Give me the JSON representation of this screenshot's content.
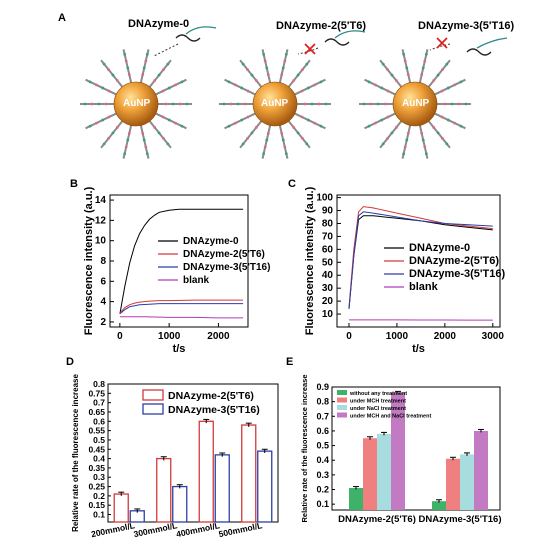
{
  "panel_a": {
    "label": "A",
    "titles": [
      "DNAzyme-0",
      "DNAzyme-2(5'T6)",
      "DNAzyme-3(5'T16)"
    ],
    "particle_label": "AuNP"
  },
  "chart_data": [
    {
      "panel": "B",
      "type": "line",
      "title": "",
      "xlabel": "t/s",
      "ylabel": "Fluorescence intensity (a.u.)",
      "xlim": [
        -200,
        2600
      ],
      "ylim": [
        1.5,
        14.5
      ],
      "xticks": [
        0,
        1000,
        2000
      ],
      "yticks": [
        2,
        4,
        6,
        8,
        10,
        12,
        14
      ],
      "legend_position": "center-right",
      "series": [
        {
          "name": "DNAzyme-0",
          "color": "#000000",
          "x": [
            0,
            100,
            200,
            300,
            400,
            500,
            600,
            700,
            800,
            1000,
            1200,
            1500,
            2000,
            2500
          ],
          "y": [
            2.8,
            5.5,
            7.8,
            9.5,
            10.7,
            11.5,
            12.1,
            12.5,
            12.8,
            13.0,
            13.1,
            13.1,
            13.1,
            13.1
          ]
        },
        {
          "name": "DNAzyme-2(5'T6)",
          "color": "#d23a3a",
          "x": [
            0,
            100,
            200,
            300,
            400,
            600,
            800,
            1000,
            1500,
            2000,
            2500
          ],
          "y": [
            2.9,
            3.4,
            3.7,
            3.85,
            3.95,
            4.05,
            4.1,
            4.1,
            4.15,
            4.15,
            4.15
          ]
        },
        {
          "name": "DNAzyme-3(5'T16)",
          "color": "#2c3fa8",
          "x": [
            0,
            100,
            200,
            300,
            400,
            600,
            800,
            1000,
            1500,
            2000,
            2500
          ],
          "y": [
            2.8,
            3.2,
            3.5,
            3.6,
            3.7,
            3.75,
            3.8,
            3.8,
            3.8,
            3.8,
            3.8
          ]
        },
        {
          "name": "blank",
          "color": "#b43cb4",
          "x": [
            0,
            500,
            1000,
            1500,
            2000,
            2500
          ],
          "y": [
            2.5,
            2.5,
            2.45,
            2.45,
            2.4,
            2.4
          ]
        }
      ]
    },
    {
      "panel": "C",
      "type": "line",
      "title": "",
      "xlabel": "t/s",
      "ylabel": "Fluorescence intensity (a.u.)",
      "xlim": [
        -250,
        3150
      ],
      "ylim": [
        0,
        102
      ],
      "xticks": [
        0,
        1000,
        2000,
        3000
      ],
      "yticks": [
        10,
        20,
        30,
        40,
        50,
        60,
        70,
        80,
        90,
        100
      ],
      "legend_position": "center-right",
      "series": [
        {
          "name": "DNAzyme-0",
          "color": "#000000",
          "x": [
            0,
            100,
            200,
            300,
            500,
            1000,
            1500,
            2000,
            2500,
            3000
          ],
          "y": [
            14,
            55,
            83,
            86,
            86,
            84,
            82,
            79,
            77,
            75
          ]
        },
        {
          "name": "DNAzyme-2(5'T6)",
          "color": "#d23a3a",
          "x": [
            0,
            100,
            200,
            300,
            500,
            1000,
            1500,
            2000,
            2500,
            3000
          ],
          "y": [
            15,
            60,
            89,
            93,
            92,
            88,
            84,
            80,
            78,
            76
          ]
        },
        {
          "name": "DNAzyme-3(5'T16)",
          "color": "#2c3fa8",
          "x": [
            0,
            100,
            200,
            300,
            500,
            1000,
            1500,
            2000,
            2500,
            3000
          ],
          "y": [
            14,
            55,
            86,
            89,
            88,
            85,
            82,
            80,
            79,
            78
          ]
        },
        {
          "name": "blank",
          "color": "#b43cb4",
          "x": [
            0,
            500,
            1000,
            1500,
            2000,
            2500,
            3000
          ],
          "y": [
            5.5,
            5.5,
            5.5,
            5.4,
            5.4,
            5.3,
            5.3
          ]
        }
      ]
    },
    {
      "panel": "D",
      "type": "bar",
      "title": "",
      "xlabel": "",
      "ylabel": "Relative rate of the fluorescence increase",
      "ylim": [
        0.06,
        0.8
      ],
      "yticks": [
        0.1,
        0.15,
        0.2,
        0.25,
        0.3,
        0.35,
        0.4,
        0.45,
        0.5,
        0.55,
        0.6,
        0.65,
        0.7,
        0.75,
        0.8
      ],
      "categories": [
        "200mmol/L",
        "300mmol/L",
        "400mmol/L",
        "500mmol/L"
      ],
      "legend_position": "top-center",
      "series": [
        {
          "name": "DNAzyme-2(5'T6)",
          "color": "#d23a3a",
          "fill": "none",
          "values": [
            0.21,
            0.4,
            0.6,
            0.58
          ],
          "errors": [
            0.01,
            0.01,
            0.01,
            0.01
          ]
        },
        {
          "name": "DNAzyme-3(5'T16)",
          "color": "#2c3fa8",
          "fill": "none",
          "values": [
            0.12,
            0.25,
            0.42,
            0.44
          ],
          "errors": [
            0.01,
            0.01,
            0.01,
            0.01
          ]
        }
      ]
    },
    {
      "panel": "E",
      "type": "bar",
      "title": "",
      "xlabel": "",
      "ylabel": "Relative rate of the fluorescence increase",
      "ylim": [
        0.06,
        0.9
      ],
      "yticks": [
        0.1,
        0.2,
        0.3,
        0.4,
        0.5,
        0.6,
        0.7,
        0.8,
        0.9
      ],
      "categories": [
        "DNAzyme-2(5'T6)",
        "DNAzyme-3(5'T16)"
      ],
      "legend_position": "top-left",
      "series": [
        {
          "name": "without any treatment",
          "color": "#3fb26a",
          "values": [
            0.21,
            0.12
          ],
          "errors": [
            0.01,
            0.01
          ]
        },
        {
          "name": "under MCH treatment",
          "color": "#f08080",
          "values": [
            0.55,
            0.41
          ],
          "errors": [
            0.01,
            0.01
          ]
        },
        {
          "name": "under NaCl treatment",
          "color": "#a8dde0",
          "values": [
            0.58,
            0.44
          ],
          "errors": [
            0.01,
            0.01
          ]
        },
        {
          "name": "under MCH and NaCl treatment",
          "color": "#c27bc2",
          "values": [
            0.86,
            0.6
          ],
          "errors": [
            0.01,
            0.01
          ]
        }
      ]
    }
  ]
}
